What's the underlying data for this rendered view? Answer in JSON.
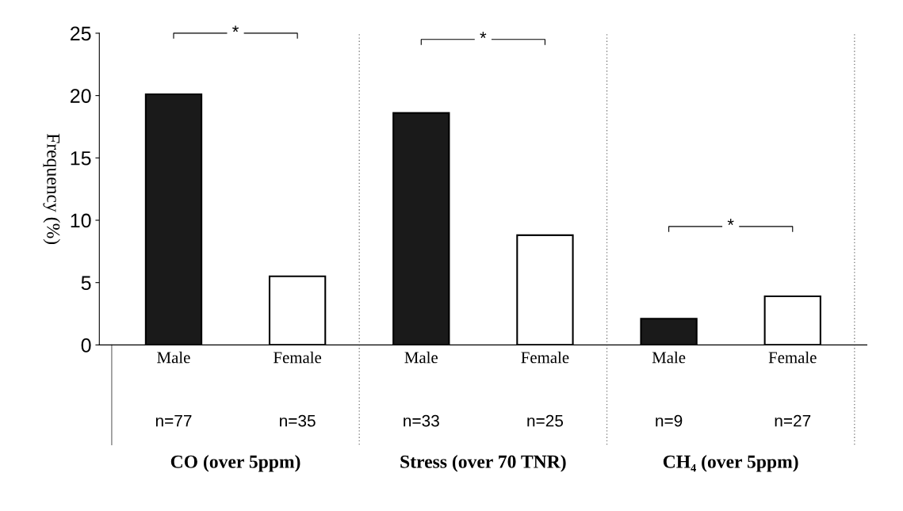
{
  "chart_data": {
    "type": "bar",
    "ylabel": "Frequency (%)",
    "categories": [
      "Male",
      "Female",
      "Male",
      "Female",
      "Male",
      "Female"
    ],
    "values": [
      20.1,
      5.5,
      18.6,
      8.8,
      2.1,
      3.9
    ],
    "colors": [
      "#1a1a1a",
      "#ffffff",
      "#1a1a1a",
      "#ffffff",
      "#1a1a1a",
      "#ffffff"
    ],
    "ylim": [
      0,
      25
    ],
    "yticks": [
      0,
      5,
      10,
      15,
      20,
      25
    ],
    "grid": false,
    "annotations": [
      "*",
      "*",
      "*",
      "n=77",
      "n=35",
      "n=33",
      "n=25",
      "n=9",
      "n=27",
      "CO (over 5ppm)",
      "Stress (over 70 TNR)",
      "CH₄ (over 5ppm)"
    ]
  }
}
